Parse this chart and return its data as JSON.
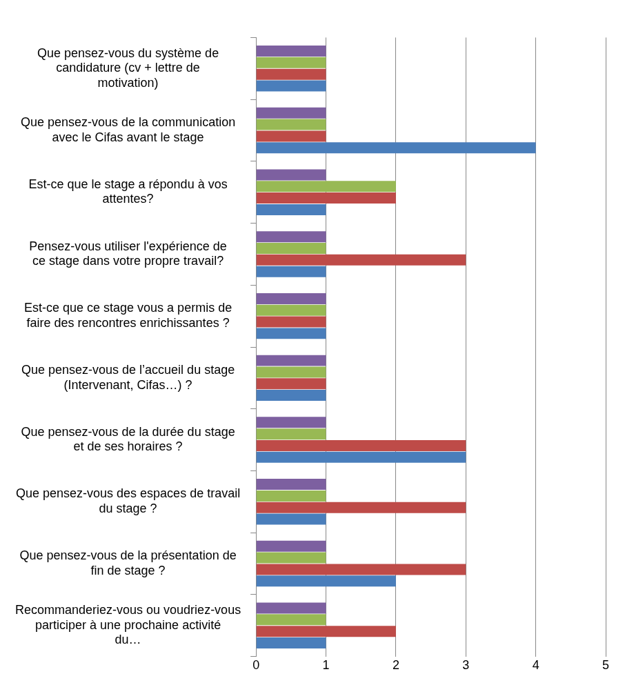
{
  "chart_data": {
    "type": "bar",
    "orientation": "horizontal",
    "categories": [
      "Que pensez-vous du système de candidature (cv + lettre de motivation)",
      "Que pensez-vous de la communication avec le Cifas avant le stage",
      "Est-ce que le stage a répondu à vos attentes?",
      "Pensez-vous utiliser l'expérience de ce stage dans votre propre travail?",
      "Est-ce que ce stage vous a permis de faire des rencontres enrichissantes ?",
      "Que pensez-vous de l’accueil du stage (Intervenant, Cifas…) ?",
      "Que pensez-vous de la durée du stage et de ses horaires ?",
      "Que pensez-vous des espaces de travail du stage ?",
      "Que pensez-vous de la présentation de fin de stage ?",
      "Recommanderiez-vous ou voudriez-vous participer à une prochaine activité du…"
    ],
    "series": [
      {
        "color": "#7d60a0",
        "values": [
          1,
          1,
          1,
          1,
          1,
          1,
          1,
          1,
          1,
          1
        ]
      },
      {
        "color": "#98b954",
        "values": [
          1,
          1,
          2,
          1,
          1,
          1,
          1,
          1,
          1,
          1
        ]
      },
      {
        "color": "#be4b48",
        "values": [
          1,
          1,
          2,
          3,
          1,
          1,
          3,
          3,
          3,
          2
        ]
      },
      {
        "color": "#4a7ebb",
        "values": [
          1,
          4,
          1,
          1,
          1,
          1,
          3,
          1,
          2,
          1
        ]
      }
    ],
    "xlim": [
      0,
      5
    ],
    "xticks": [
      0,
      1,
      2,
      3,
      4,
      5
    ],
    "grid": "x",
    "legend": false
  }
}
